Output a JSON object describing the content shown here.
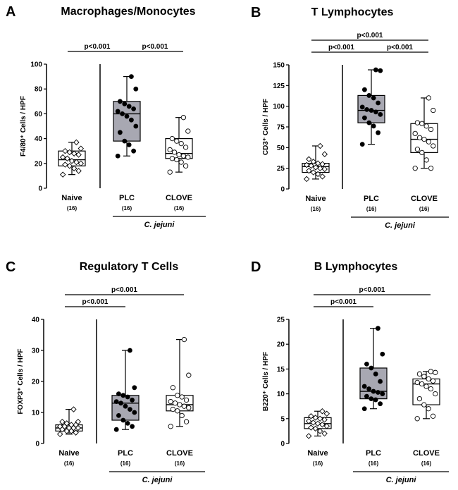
{
  "colors": {
    "plc_box": "#a8a8b2",
    "open_box": "#ffffff",
    "ink": "#000000"
  },
  "chart_data": [
    {
      "type": "box",
      "panel": "A",
      "title": "Macrophages/Monocytes",
      "ylabel": "F4/80⁺ Cells / HPF",
      "ylim": [
        0,
        100
      ],
      "yticks": [
        "0",
        "20",
        "40",
        "60",
        "80",
        "100"
      ],
      "group_label": "C. jejuni",
      "categories": [
        {
          "name": "Naive",
          "n": "(16)",
          "marker": "diamond",
          "fill": "#ffffff",
          "min": 11,
          "q1": 18,
          "median": 23,
          "q3": 30,
          "max": 37,
          "points": [
            11,
            14,
            16,
            18,
            19,
            20,
            21,
            22,
            24,
            25,
            27,
            28,
            29,
            30,
            32,
            37
          ]
        },
        {
          "name": "PLC",
          "n": "(16)",
          "marker": "filled",
          "fill": "#a8a8b2",
          "min": 26,
          "q1": 38,
          "median": 60,
          "q3": 70,
          "max": 90,
          "points": [
            26,
            30,
            35,
            38,
            45,
            50,
            55,
            58,
            60,
            62,
            64,
            66,
            68,
            70,
            80,
            90
          ]
        },
        {
          "name": "CLOVE",
          "n": "(16)",
          "marker": "open",
          "fill": "#ffffff",
          "min": 13,
          "q1": 24,
          "median": 28,
          "q3": 40,
          "max": 57,
          "points": [
            13,
            18,
            21,
            23,
            24,
            25,
            26,
            27,
            29,
            31,
            33,
            36,
            38,
            40,
            46,
            57
          ]
        }
      ],
      "significance": [
        {
          "label": "p<0.001",
          "from": 0,
          "to": 1,
          "level": 0
        },
        {
          "label": "p<0.001",
          "from": 1,
          "to": 2,
          "level": 0
        }
      ]
    },
    {
      "type": "box",
      "panel": "B",
      "title": "T Lymphocytes",
      "ylabel": "CD3⁺ Cells / HPF",
      "ylim": [
        0,
        150
      ],
      "yticks": [
        "0",
        "25",
        "50",
        "75",
        "100",
        "125",
        "150"
      ],
      "group_label": "C. jejuni",
      "categories": [
        {
          "name": "Naive",
          "n": "(16)",
          "marker": "diamond",
          "fill": "#ffffff",
          "min": 12,
          "q1": 20,
          "median": 27,
          "q3": 31,
          "max": 52,
          "points": [
            12,
            15,
            18,
            20,
            22,
            24,
            25,
            26,
            28,
            29,
            30,
            31,
            33,
            36,
            42,
            52
          ]
        },
        {
          "name": "PLC",
          "n": "(16)",
          "marker": "filled",
          "fill": "#a8a8b2",
          "min": 54,
          "q1": 80,
          "median": 95,
          "q3": 113,
          "max": 144,
          "points": [
            54,
            68,
            76,
            80,
            86,
            90,
            93,
            95,
            96,
            99,
            104,
            110,
            113,
            120,
            143,
            144
          ]
        },
        {
          "name": "CLOVE",
          "n": "(16)",
          "marker": "open",
          "fill": "#ffffff",
          "min": 25,
          "q1": 44,
          "median": 60,
          "q3": 79,
          "max": 110,
          "points": [
            25,
            25,
            35,
            44,
            48,
            52,
            57,
            60,
            62,
            67,
            72,
            76,
            79,
            80,
            95,
            110
          ]
        }
      ],
      "significance": [
        {
          "label": "p<0.001",
          "from": 0,
          "to": 2,
          "level": 1
        },
        {
          "label": "p<0.001",
          "from": 0,
          "to": 1,
          "level": 0
        },
        {
          "label": "p<0.001",
          "from": 1,
          "to": 2,
          "level": 0
        }
      ]
    },
    {
      "type": "box",
      "panel": "C",
      "title": "Regulatory T Cells",
      "ylabel": "FOXP3⁺ Cells / HPF",
      "ylim": [
        0,
        40
      ],
      "yticks": [
        "0",
        "10",
        "20",
        "30",
        "40"
      ],
      "group_label": "C. jejuni",
      "categories": [
        {
          "name": "Naive",
          "n": "(16)",
          "marker": "diamond",
          "fill": "#ffffff",
          "min": 3,
          "q1": 4,
          "median": 5,
          "q3": 6,
          "max": 11,
          "points": [
            3,
            3.5,
            4,
            4,
            4.5,
            5,
            5,
            5,
            5.5,
            5.5,
            6,
            6,
            6.5,
            7,
            7,
            11
          ]
        },
        {
          "name": "PLC",
          "n": "(16)",
          "marker": "filled",
          "fill": "#a8a8b2",
          "min": 4.5,
          "q1": 7.5,
          "median": 13,
          "q3": 15.5,
          "max": 30,
          "points": [
            4.5,
            5.5,
            6.5,
            7.5,
            9,
            10,
            11,
            12,
            13,
            13.5,
            14,
            15,
            15.5,
            16,
            18,
            30
          ]
        },
        {
          "name": "CLOVE",
          "n": "(16)",
          "marker": "open",
          "fill": "#ffffff",
          "min": 5.5,
          "q1": 10.5,
          "median": 12.5,
          "q3": 15.5,
          "max": 33.5,
          "points": [
            5.5,
            7,
            9,
            10.5,
            11,
            11.5,
            12,
            12.5,
            13,
            13.5,
            14,
            15,
            15.5,
            18,
            22,
            33.5
          ]
        }
      ],
      "significance": [
        {
          "label": "p<0.001",
          "from": 0,
          "to": 2,
          "level": 1
        },
        {
          "label": "p<0.001",
          "from": 0,
          "to": 1,
          "level": 0
        }
      ]
    },
    {
      "type": "box",
      "panel": "D",
      "title": "B Lymphocytes",
      "ylabel": "B220⁺ Cells / HPF",
      "ylim": [
        0,
        25
      ],
      "yticks": [
        "0",
        "5",
        "10",
        "15",
        "20",
        "25"
      ],
      "group_label": "C. jejuni",
      "categories": [
        {
          "name": "Naive",
          "n": "(16)",
          "marker": "diamond",
          "fill": "#ffffff",
          "min": 1.5,
          "q1": 3,
          "median": 4,
          "q3": 5.2,
          "max": 6.5,
          "points": [
            1.5,
            2,
            2.5,
            3,
            3.2,
            3.5,
            3.8,
            4,
            4.2,
            4.5,
            4.8,
            5,
            5.2,
            5.5,
            6,
            6.5
          ]
        },
        {
          "name": "PLC",
          "n": "(16)",
          "marker": "filled",
          "fill": "#a8a8b2",
          "min": 7,
          "q1": 9,
          "median": 10.5,
          "q3": 15.2,
          "max": 23.2,
          "points": [
            7,
            8,
            8.8,
            9,
            9.5,
            10,
            10.3,
            10.5,
            11,
            11.5,
            12.5,
            14,
            15.2,
            16,
            18,
            23.2
          ]
        },
        {
          "name": "CLOVE",
          "n": "(16)",
          "marker": "open",
          "fill": "#ffffff",
          "min": 5,
          "q1": 7.8,
          "median": 12,
          "q3": 13,
          "max": 14.5,
          "points": [
            5,
            5.5,
            7,
            7.8,
            9,
            10,
            11,
            11.5,
            12,
            12.3,
            12.6,
            13,
            13.5,
            14,
            14.3,
            14.5
          ]
        }
      ],
      "significance": [
        {
          "label": "p<0.001",
          "from": 0,
          "to": 2,
          "level": 1
        },
        {
          "label": "p<0.001",
          "from": 0,
          "to": 1,
          "level": 0
        }
      ]
    }
  ]
}
